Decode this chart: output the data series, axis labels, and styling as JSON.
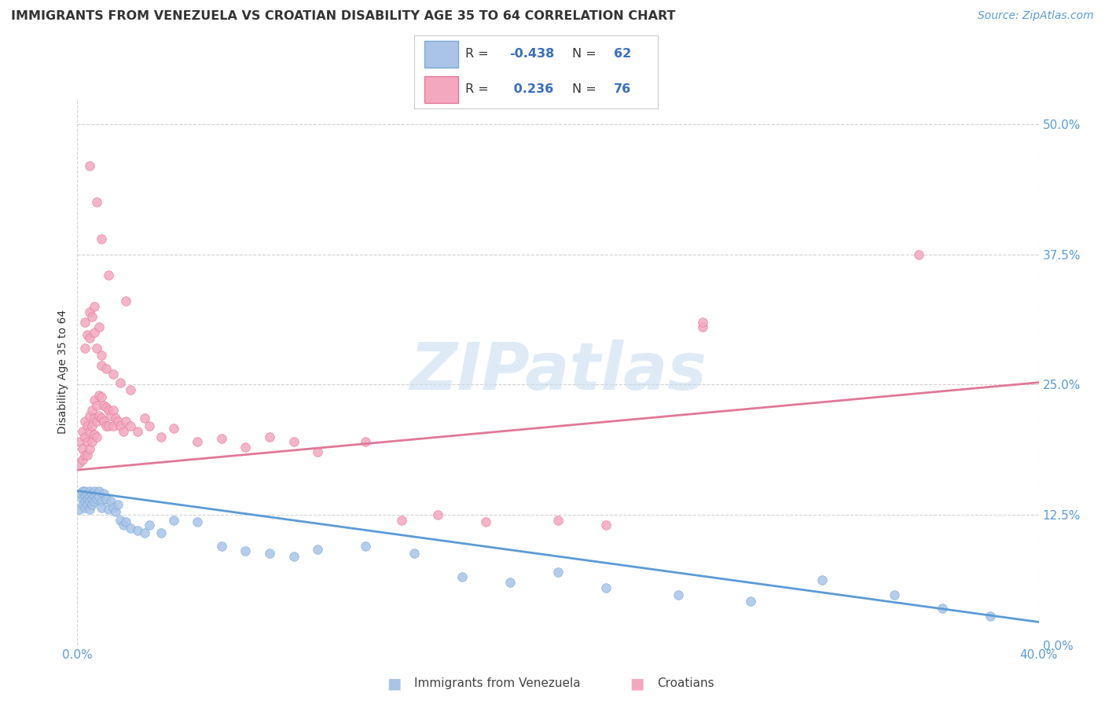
{
  "title": "IMMIGRANTS FROM VENEZUELA VS CROATIAN DISABILITY AGE 35 TO 64 CORRELATION CHART",
  "source": "Source: ZipAtlas.com",
  "ylabel": "Disability Age 35 to 64",
  "ytick_labels": [
    "0.0%",
    "12.5%",
    "25.0%",
    "37.5%",
    "50.0%"
  ],
  "ytick_values": [
    0.0,
    0.125,
    0.25,
    0.375,
    0.5
  ],
  "xlim": [
    0.0,
    0.4
  ],
  "ylim": [
    0.0,
    0.525
  ],
  "xtick_values": [
    0.0,
    0.4
  ],
  "xtick_labels": [
    "0.0%",
    "40.0%"
  ],
  "blue_series": {
    "name": "Immigrants from Venezuela",
    "scatter_color": "#aac4e8",
    "scatter_edge": "#7aaad4",
    "line_color": "#5b9bd5",
    "line_x0": 0.0,
    "line_x1": 0.4,
    "line_y0": 0.148,
    "line_y1": 0.022,
    "R": "-0.438",
    "N": "62",
    "x": [
      0.001,
      0.001,
      0.002,
      0.002,
      0.002,
      0.003,
      0.003,
      0.003,
      0.003,
      0.004,
      0.004,
      0.004,
      0.005,
      0.005,
      0.005,
      0.005,
      0.006,
      0.006,
      0.006,
      0.007,
      0.007,
      0.007,
      0.008,
      0.008,
      0.009,
      0.009,
      0.01,
      0.01,
      0.011,
      0.012,
      0.013,
      0.014,
      0.015,
      0.016,
      0.017,
      0.018,
      0.019,
      0.02,
      0.022,
      0.025,
      0.028,
      0.03,
      0.035,
      0.04,
      0.05,
      0.06,
      0.07,
      0.08,
      0.09,
      0.1,
      0.12,
      0.14,
      0.16,
      0.18,
      0.2,
      0.22,
      0.25,
      0.28,
      0.31,
      0.34,
      0.36,
      0.38
    ],
    "y": [
      0.145,
      0.13,
      0.148,
      0.14,
      0.135,
      0.148,
      0.142,
      0.138,
      0.132,
      0.145,
      0.14,
      0.135,
      0.148,
      0.142,
      0.138,
      0.13,
      0.145,
      0.14,
      0.135,
      0.148,
      0.142,
      0.138,
      0.145,
      0.14,
      0.148,
      0.142,
      0.138,
      0.132,
      0.145,
      0.14,
      0.13,
      0.138,
      0.132,
      0.128,
      0.135,
      0.12,
      0.115,
      0.118,
      0.112,
      0.11,
      0.108,
      0.115,
      0.108,
      0.12,
      0.118,
      0.095,
      0.09,
      0.088,
      0.085,
      0.092,
      0.095,
      0.088,
      0.065,
      0.06,
      0.07,
      0.055,
      0.048,
      0.042,
      0.062,
      0.048,
      0.035,
      0.028
    ]
  },
  "pink_series": {
    "name": "Croatians",
    "scatter_color": "#f4a8c0",
    "scatter_edge": "#e07898",
    "line_color": "#e07898",
    "line_x0": 0.0,
    "line_x1": 0.4,
    "line_y0": 0.168,
    "line_y1": 0.252,
    "R": "0.236",
    "N": "76",
    "x": [
      0.001,
      0.001,
      0.002,
      0.002,
      0.002,
      0.003,
      0.003,
      0.003,
      0.004,
      0.004,
      0.004,
      0.005,
      0.005,
      0.005,
      0.006,
      0.006,
      0.006,
      0.007,
      0.007,
      0.007,
      0.008,
      0.008,
      0.008,
      0.009,
      0.009,
      0.01,
      0.01,
      0.011,
      0.011,
      0.012,
      0.012,
      0.013,
      0.013,
      0.014,
      0.015,
      0.015,
      0.016,
      0.017,
      0.018,
      0.019,
      0.02,
      0.022,
      0.025,
      0.028,
      0.03,
      0.035,
      0.04,
      0.05,
      0.06,
      0.07,
      0.08,
      0.09,
      0.1,
      0.12,
      0.135,
      0.15,
      0.17,
      0.2,
      0.22,
      0.26,
      0.003,
      0.003,
      0.004,
      0.005,
      0.005,
      0.006,
      0.007,
      0.007,
      0.008,
      0.009,
      0.01,
      0.01,
      0.012,
      0.015,
      0.018,
      0.022
    ],
    "y": [
      0.195,
      0.175,
      0.205,
      0.188,
      0.178,
      0.215,
      0.2,
      0.182,
      0.21,
      0.195,
      0.182,
      0.22,
      0.205,
      0.188,
      0.225,
      0.21,
      0.195,
      0.235,
      0.218,
      0.202,
      0.23,
      0.215,
      0.2,
      0.24,
      0.22,
      0.238,
      0.218,
      0.23,
      0.215,
      0.228,
      0.21,
      0.225,
      0.21,
      0.22,
      0.225,
      0.21,
      0.218,
      0.215,
      0.21,
      0.205,
      0.215,
      0.21,
      0.205,
      0.218,
      0.21,
      0.2,
      0.208,
      0.195,
      0.198,
      0.19,
      0.2,
      0.195,
      0.185,
      0.195,
      0.12,
      0.125,
      0.118,
      0.12,
      0.115,
      0.305,
      0.285,
      0.31,
      0.298,
      0.32,
      0.295,
      0.315,
      0.3,
      0.325,
      0.285,
      0.305,
      0.268,
      0.278,
      0.265,
      0.26,
      0.252,
      0.245
    ],
    "outliers_x": [
      0.005,
      0.008,
      0.01,
      0.013,
      0.02,
      0.26,
      0.35
    ],
    "outliers_y": [
      0.46,
      0.425,
      0.39,
      0.355,
      0.33,
      0.31,
      0.375
    ]
  },
  "legend_text_color": "#3a6dbf",
  "legend_label_color": "#333333",
  "watermark_text": "ZIPatlas",
  "watermark_color": "#c8ddf0",
  "bg_color": "#ffffff",
  "grid_color": "#cccccc",
  "tick_color": "#5b9bd5",
  "title_color": "#333333",
  "title_fontsize": 11.5,
  "tick_fontsize": 11,
  "ylabel_fontsize": 10,
  "source_color": "#5b9bd5",
  "source_fontsize": 10,
  "bottom_legend_names": [
    "Immigrants from Venezuela",
    "Croatians"
  ]
}
